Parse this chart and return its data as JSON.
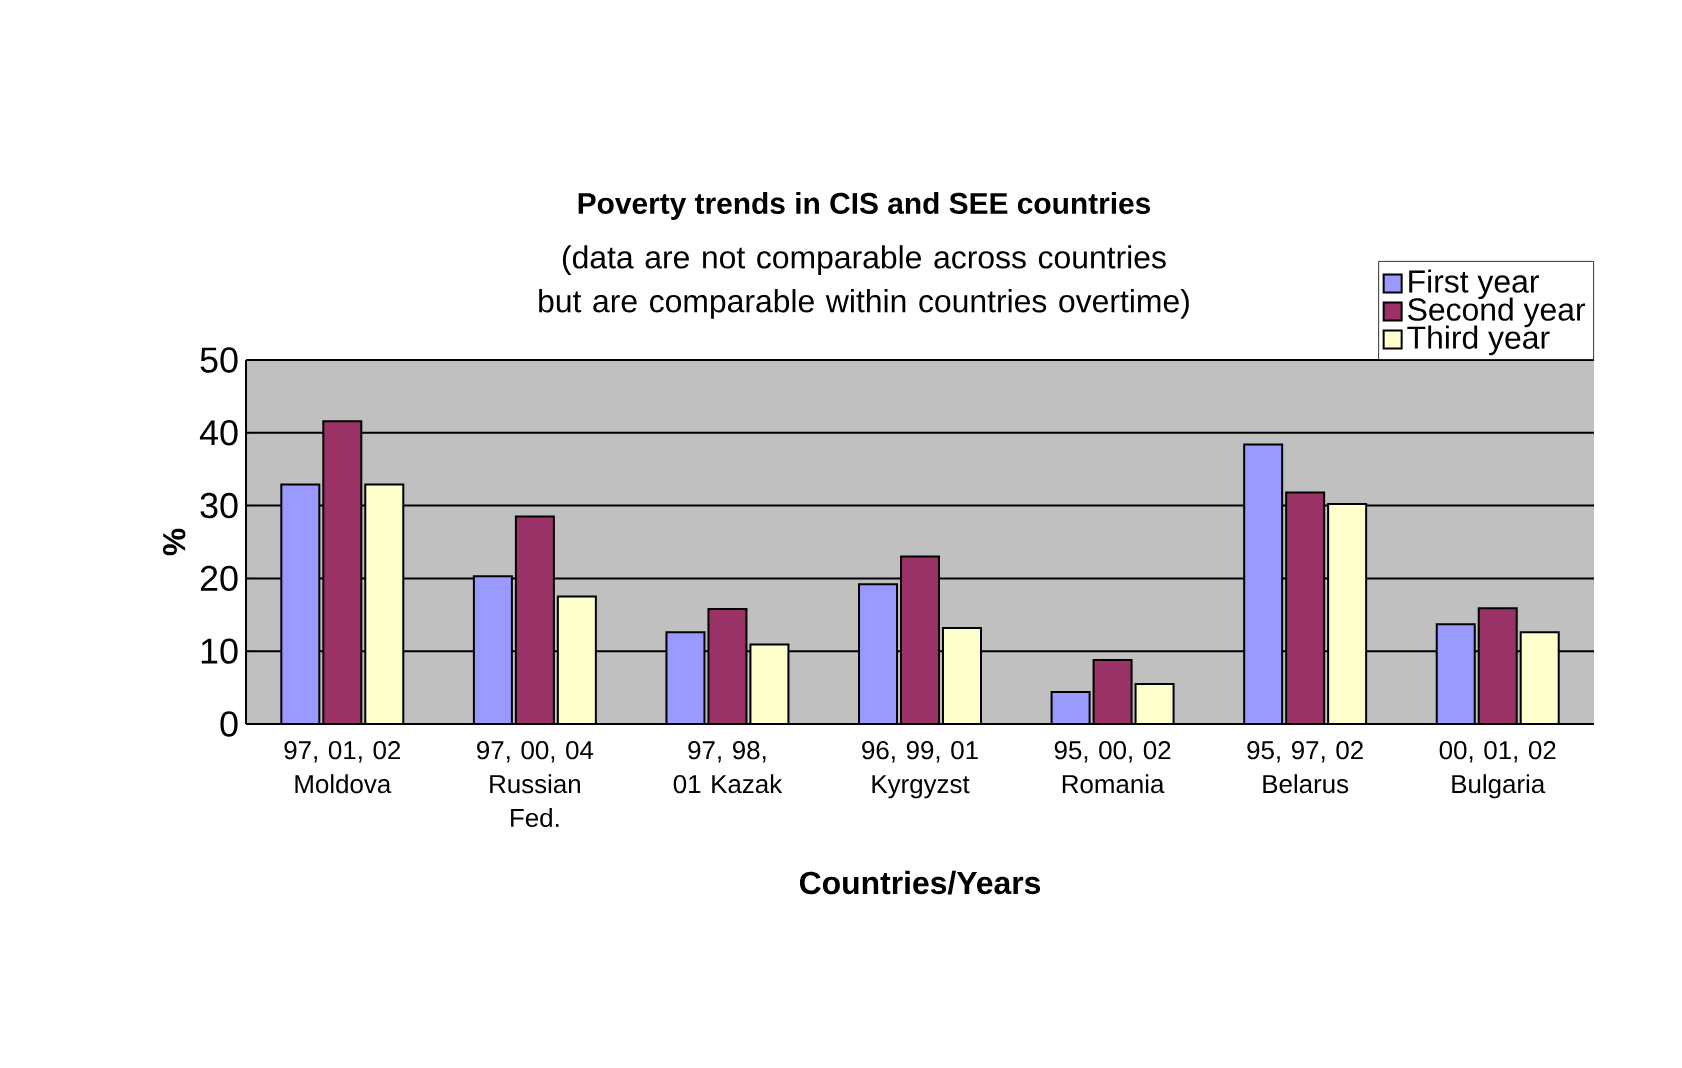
{
  "chart_data": {
    "type": "bar",
    "title": "Poverty trends in CIS and SEE countries",
    "subtitle": "(data are not comparable across countries but are comparable within countries overtime)",
    "xlabel": "Countries/Years",
    "ylabel": "%",
    "categories": [
      "97, 01, 02 Moldova",
      "97, 00, 04 Russian Fed.",
      "97, 98, 01 Kazak",
      "96, 99, 01 Kyrgyzst",
      "95, 00, 02 Romania",
      "95, 97, 02 Belarus",
      "00, 01, 02 Bulgaria"
    ],
    "series": [
      {
        "name": "First year",
        "color": "#9999ff",
        "values": [
          32.9,
          20.3,
          12.6,
          19.2,
          4.4,
          38.4,
          13.7
        ]
      },
      {
        "name": "Second year",
        "color": "#993366",
        "values": [
          41.6,
          28.5,
          15.8,
          23.0,
          8.8,
          31.8,
          15.9
        ]
      },
      {
        "name": "Third year",
        "color": "#ffffcc",
        "values": [
          32.9,
          17.5,
          10.9,
          13.2,
          5.5,
          30.2,
          12.6
        ]
      }
    ],
    "ylim": [
      0,
      50
    ],
    "yticks": [
      0,
      10,
      20,
      30,
      40,
      50
    ],
    "grid": "y",
    "legend": "top right"
  }
}
